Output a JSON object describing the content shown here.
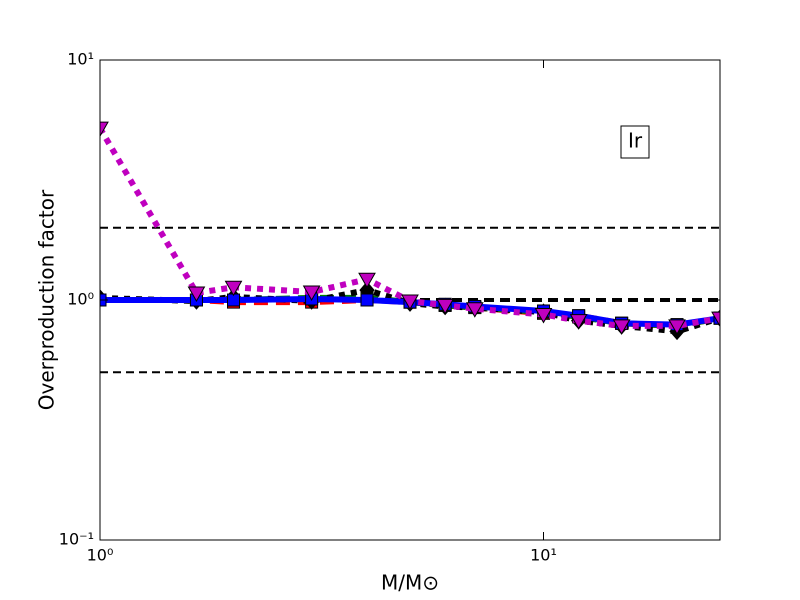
{
  "chart_data": {
    "type": "line",
    "xlabel": "M/M⊙",
    "ylabel": "Overproduction factor",
    "annotation": "Ir",
    "xscale": "log",
    "yscale": "log",
    "xlim": [
      1,
      25
    ],
    "ylim": [
      0.1,
      10
    ],
    "xticks": [
      {
        "value": 1,
        "label": "10⁰"
      },
      {
        "value": 10,
        "label": "10¹"
      }
    ],
    "yticks": [
      {
        "value": 0.1,
        "label": "10⁻¹"
      },
      {
        "value": 1,
        "label": "10⁰"
      },
      {
        "value": 10,
        "label": "10¹"
      }
    ],
    "hlines": [
      2,
      1,
      0.5
    ],
    "x": [
      1,
      1.65,
      2,
      3,
      4,
      5,
      6,
      7,
      10,
      12,
      15,
      20,
      25
    ],
    "series": [
      {
        "color": "#ff0000",
        "style": "dashed",
        "marker": "square",
        "values": [
          1.0,
          1.0,
          0.98,
          0.98,
          1.0,
          0.98,
          0.95,
          0.93,
          0.88,
          0.86,
          0.8,
          0.78,
          0.84
        ]
      },
      {
        "color": "#008000",
        "style": "dashed",
        "marker": "square",
        "values": [
          1.0,
          1.0,
          1.0,
          1.02,
          1.02,
          0.98,
          0.95,
          0.93,
          0.89,
          0.85,
          0.8,
          0.78,
          0.84
        ]
      },
      {
        "color": "#000000",
        "style": "dotted",
        "marker": "diamond",
        "values": [
          1.02,
          0.99,
          1.03,
          0.99,
          1.1,
          0.97,
          0.94,
          0.93,
          0.89,
          0.82,
          0.78,
          0.74,
          0.84
        ]
      },
      {
        "color": "#0000ff",
        "style": "solid",
        "marker": "square",
        "values": [
          1.0,
          1.0,
          1.0,
          1.01,
          1.0,
          0.98,
          0.96,
          0.94,
          0.9,
          0.86,
          0.8,
          0.79,
          0.84
        ]
      },
      {
        "color": "#bf00bf",
        "style": "dotted",
        "marker": "triangle-down",
        "values": [
          5.2,
          1.07,
          1.13,
          1.08,
          1.22,
          0.99,
          0.95,
          0.92,
          0.87,
          0.82,
          0.78,
          0.78,
          0.84
        ]
      }
    ]
  }
}
